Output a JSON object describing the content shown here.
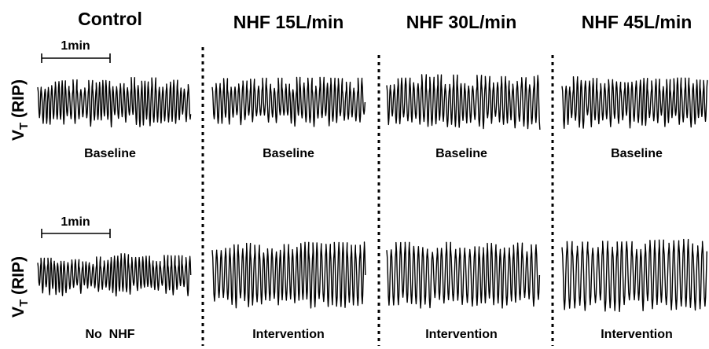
{
  "chart_data": {
    "type": "line",
    "panels": [
      {
        "column": "Control",
        "row": "baseline",
        "label": "Baseline",
        "color": "#000000",
        "breaths_per_min": 19,
        "amplitude": 0.9,
        "variability": 0.35,
        "seed": 11
      },
      {
        "column": "NHF 15L/min",
        "row": "baseline",
        "label": "Baseline",
        "color": "#000000",
        "breaths_per_min": 18,
        "amplitude": 0.9,
        "variability": 0.35,
        "seed": 23
      },
      {
        "column": "NHF 30L/min",
        "row": "baseline",
        "label": "Baseline",
        "color": "#000000",
        "breaths_per_min": 17,
        "amplitude": 1.0,
        "variability": 0.35,
        "seed": 37
      },
      {
        "column": "NHF 45L/min",
        "row": "baseline",
        "label": "Baseline",
        "color": "#000000",
        "breaths_per_min": 18,
        "amplitude": 0.95,
        "variability": 0.35,
        "seed": 41
      },
      {
        "column": "Control",
        "row": "intervention",
        "label": "No  NHF",
        "color": "#000000",
        "breaths_per_min": 19,
        "amplitude": 0.75,
        "variability": 0.4,
        "seed": 53
      },
      {
        "column": "NHF 15L/min",
        "row": "intervention",
        "label": "Intervention",
        "color": "#000000",
        "breaths_per_min": 16,
        "amplitude": 1.35,
        "variability": 0.2,
        "seed": 67
      },
      {
        "column": "NHF 30L/min",
        "row": "intervention",
        "label": "Intervention",
        "color": "#000000",
        "breaths_per_min": 15,
        "amplitude": 1.35,
        "variability": 0.2,
        "seed": 71
      },
      {
        "column": "NHF 45L/min",
        "row": "intervention",
        "label": "Intervention",
        "color": "#000000",
        "breaths_per_min": 14,
        "amplitude": 1.5,
        "variability": 0.2,
        "seed": 83
      }
    ],
    "columns": [
      "Control",
      "NHF 15L/min",
      "NHF 30L/min",
      "NHF 45L/min"
    ],
    "ylabel_main": "V",
    "ylabel_sub": "T",
    "ylabel_suffix": " (RIP)",
    "scale_bar": {
      "label": "1min",
      "duration_min": 1
    },
    "grid": false,
    "separators": "dotted-vertical"
  }
}
